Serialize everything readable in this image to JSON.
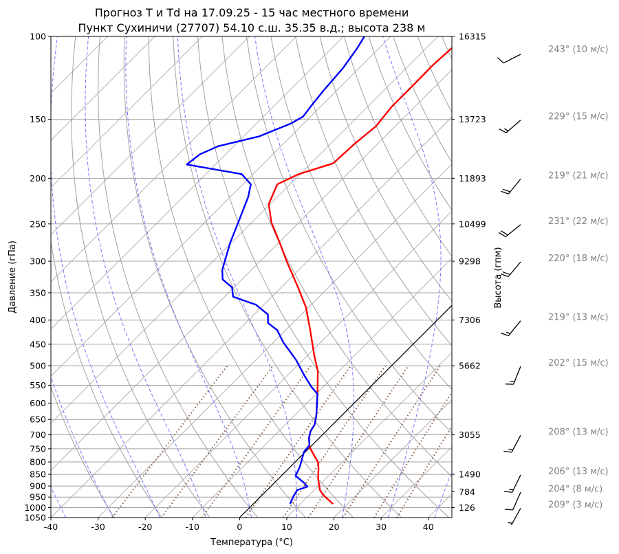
{
  "chart_data": {
    "type": "line",
    "subtype": "skew-t log-p",
    "title": [
      "Прогноз T и Td на 17.09.25 - 15 час местного времени",
      "Пункт Сухиничи (27707) 54.10 с.ш. 35.35 в.д.; высота 238 м"
    ],
    "xlabel": "Температура (°C)",
    "ylabel": "Давление (гПа)",
    "y2label": "Высота (гпм)",
    "xlim": [
      -40,
      45
    ],
    "ylim": [
      1050,
      100
    ],
    "xticks": [
      "-40",
      "-30",
      "-20",
      "-10",
      "0",
      "10",
      "20",
      "30",
      "40"
    ],
    "yticks": [
      "100",
      "150",
      "200",
      "250",
      "300",
      "350",
      "400",
      "450",
      "500",
      "550",
      "600",
      "650",
      "700",
      "750",
      "800",
      "850",
      "900",
      "950",
      "1000",
      "1050"
    ],
    "height_labels": [
      {
        "p": 100,
        "label": "16315"
      },
      {
        "p": 150,
        "label": "13723"
      },
      {
        "p": 200,
        "label": "11893"
      },
      {
        "p": 250,
        "label": "10499"
      },
      {
        "p": 300,
        "label": "9298"
      },
      {
        "p": 400,
        "label": "7306"
      },
      {
        "p": 500,
        "label": "5662"
      },
      {
        "p": 700,
        "label": "3055"
      },
      {
        "p": 850,
        "label": "1490"
      },
      {
        "p": 925,
        "label": "784"
      },
      {
        "p": 1000,
        "label": "126"
      }
    ],
    "winds": [
      {
        "p": 100,
        "dir": 243,
        "speed": 10,
        "label": "243° (10 м/с)"
      },
      {
        "p": 150,
        "dir": 229,
        "speed": 15,
        "label": "229° (15 м/с)"
      },
      {
        "p": 200,
        "dir": 219,
        "speed": 21,
        "label": "219° (21 м/с)"
      },
      {
        "p": 250,
        "dir": 231,
        "speed": 22,
        "label": "231° (22 м/с)"
      },
      {
        "p": 300,
        "dir": 220,
        "speed": 18,
        "label": "220° (18 м/с)"
      },
      {
        "p": 400,
        "dir": 219,
        "speed": 13,
        "label": "219° (13 м/с)"
      },
      {
        "p": 500,
        "dir": 202,
        "speed": 15,
        "label": "202° (15 м/с)"
      },
      {
        "p": 700,
        "dir": 208,
        "speed": 13,
        "label": "208° (13 м/с)"
      },
      {
        "p": 850,
        "dir": 206,
        "speed": 13,
        "label": "206° (13 м/с)"
      },
      {
        "p": 925,
        "dir": 204,
        "speed": 8,
        "label": "204° (8 м/с)"
      },
      {
        "p": 1000,
        "dir": 209,
        "speed": 3,
        "label": "209° (3 м/с)"
      }
    ],
    "series": [
      {
        "name": "T",
        "color": "#ff0000",
        "points": [
          [
            982,
            16.9
          ],
          [
            940,
            12.9
          ],
          [
            918,
            11.2
          ],
          [
            870,
            8.5
          ],
          [
            822,
            6.1
          ],
          [
            800,
            4.8
          ],
          [
            776,
            2.7
          ],
          [
            743,
            -0.2
          ],
          [
            738,
            -0.5
          ],
          [
            711,
            -2.2
          ],
          [
            688,
            -3.3
          ],
          [
            667,
            -3.8
          ],
          [
            639,
            -5.3
          ],
          [
            574,
            -9.7
          ],
          [
            513,
            -14.5
          ],
          [
            475,
            -18.6
          ],
          [
            420,
            -24.8
          ],
          [
            376,
            -30.5
          ],
          [
            340,
            -36.6
          ],
          [
            300,
            -44.4
          ],
          [
            274,
            -49.8
          ],
          [
            248,
            -55.9
          ],
          [
            227,
            -60.3
          ],
          [
            206,
            -62.7
          ],
          [
            196,
            -60.3
          ],
          [
            186,
            -55.3
          ],
          [
            169,
            -54.9
          ],
          [
            155,
            -54.1
          ],
          [
            141,
            -54.9
          ],
          [
            127,
            -54.9
          ],
          [
            115,
            -55.0
          ],
          [
            106,
            -54.6
          ],
          [
            100,
            -54.5
          ]
        ]
      },
      {
        "name": "Td",
        "color": "#0000ff",
        "points": [
          [
            982,
            7.8
          ],
          [
            946,
            6.9
          ],
          [
            918,
            6.4
          ],
          [
            903,
            7.8
          ],
          [
            888,
            6.5
          ],
          [
            856,
            3.0
          ],
          [
            822,
            2.1
          ],
          [
            761,
            -0.3
          ],
          [
            738,
            -0.5
          ],
          [
            711,
            -2.2
          ],
          [
            688,
            -3.3
          ],
          [
            667,
            -3.8
          ],
          [
            639,
            -5.3
          ],
          [
            574,
            -9.7
          ],
          [
            555,
            -12.4
          ],
          [
            526,
            -16.2
          ],
          [
            485,
            -21.6
          ],
          [
            446,
            -27.9
          ],
          [
            420,
            -31.8
          ],
          [
            406,
            -35.2
          ],
          [
            389,
            -37.1
          ],
          [
            371,
            -41.7
          ],
          [
            357,
            -48.2
          ],
          [
            341,
            -50.4
          ],
          [
            328,
            -54.1
          ],
          [
            313,
            -56.2
          ],
          [
            274,
            -60.3
          ],
          [
            248,
            -62.9
          ],
          [
            219,
            -66.2
          ],
          [
            206,
            -68.3
          ],
          [
            196,
            -72.4
          ],
          [
            187,
            -86.1
          ],
          [
            178,
            -85.5
          ],
          [
            171,
            -83.3
          ],
          [
            163,
            -76.7
          ],
          [
            153,
            -72.7
          ],
          [
            148,
            -71.6
          ],
          [
            141,
            -72.1
          ],
          [
            130,
            -72.8
          ],
          [
            117,
            -73.4
          ],
          [
            106,
            -74.6
          ],
          [
            100,
            -75.6
          ]
        ]
      }
    ],
    "highlight_isotherm": 0,
    "dry_adiabats_t0_c": [
      -30,
      -20,
      -10,
      0,
      10,
      20,
      30,
      40,
      50,
      60,
      70,
      80,
      90,
      100,
      110,
      120,
      130,
      140,
      150,
      160,
      170,
      180,
      190,
      200
    ],
    "moist_adiabats_t0_c": [
      -40,
      -30,
      -20,
      -10,
      0,
      10,
      20,
      30,
      40
    ],
    "mixing_ratios_kgkg": [
      0.0004,
      0.001,
      0.002,
      0.004,
      0.007,
      0.01,
      0.016,
      0.024,
      0.032
    ],
    "colors": {
      "grid": "#a0a0a0",
      "dry": "#a0a0a0",
      "moist": "#7777ff",
      "mixing": "#8b5a3c",
      "isotherm0": "#000000",
      "wind_text": "#808080"
    }
  }
}
